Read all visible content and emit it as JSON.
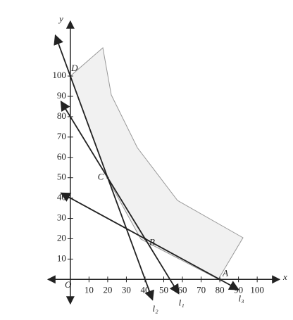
{
  "chart_data": {
    "type": "line",
    "x_label": "x",
    "y_label": "y",
    "origin_label": "O",
    "xlim": [
      -12,
      112
    ],
    "ylim": [
      -12,
      127
    ],
    "xticks": [
      10,
      20,
      30,
      40,
      50,
      60,
      70,
      80,
      90,
      100
    ],
    "yticks": [
      10,
      20,
      30,
      40,
      50,
      60,
      70,
      80,
      90,
      100
    ],
    "color": "#222222",
    "series": [
      {
        "name": "l₁",
        "x": [
          -5,
          58
        ],
        "values": [
          87.5,
          -7
        ]
      },
      {
        "name": "l₂",
        "x": [
          -8,
          44
        ],
        "values": [
          120,
          -10
        ]
      },
      {
        "name": "l₃",
        "x": [
          -5,
          90
        ],
        "values": [
          42.5,
          -5
        ]
      }
    ],
    "points": [
      {
        "label": "D",
        "x": 0,
        "y": 100
      },
      {
        "label": "C",
        "x": 20,
        "y": 50
      },
      {
        "label": "B",
        "x": 40,
        "y": 20
      },
      {
        "label": "A",
        "x": 80,
        "y": 0
      }
    ]
  }
}
